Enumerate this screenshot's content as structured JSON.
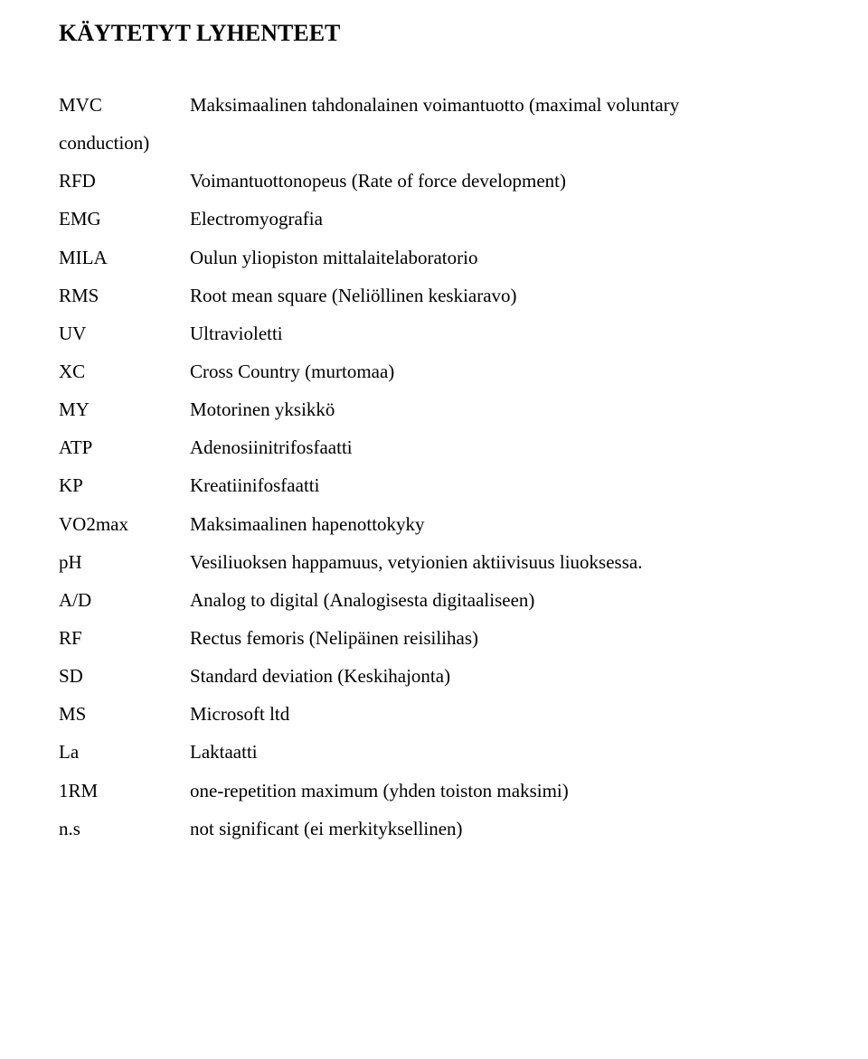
{
  "title": "KÄYTETYT LYHENTEET",
  "rows": [
    {
      "abbr": "MVC",
      "def": "Maksimaalinen tahdonalainen voimantuotto (maximal voluntary"
    },
    {
      "abbr": "conduction)",
      "def": ""
    },
    {
      "abbr": "RFD",
      "def": "Voimantuottonopeus (Rate of force development)"
    },
    {
      "abbr": "EMG",
      "def": "Electromyografia"
    },
    {
      "abbr": "MILA",
      "def": "Oulun yliopiston mittalaitelaboratorio"
    },
    {
      "abbr": "RMS",
      "def": "Root mean square (Neliöllinen keskiaravo)"
    },
    {
      "abbr": "UV",
      "def": "Ultravioletti"
    },
    {
      "abbr": "XC",
      "def": "Cross Country (murtomaa)"
    },
    {
      "abbr": "MY",
      "def": "Motorinen yksikkö"
    },
    {
      "abbr": "ATP",
      "def": "Adenosiinitrifosfaatti"
    },
    {
      "abbr": "KP",
      "def": "Kreatiinifosfaatti"
    },
    {
      "abbr": "VO2max",
      "def": "Maksimaalinen hapenottokyky"
    },
    {
      "abbr": "pH",
      "def": "Vesiliuoksen happamuus, vetyionien aktiivisuus liuoksessa."
    },
    {
      "abbr": "A/D",
      "def": "Analog to digital (Analogisesta digitaaliseen)"
    },
    {
      "abbr": "RF",
      "def": "Rectus femoris (Nelipäinen reisilihas)"
    },
    {
      "abbr": "SD",
      "def": "Standard deviation (Keskihajonta)"
    },
    {
      "abbr": "MS",
      "def": "Microsoft ltd"
    },
    {
      "abbr": "La",
      "def": "Laktaatti"
    },
    {
      "abbr": "1RM",
      "def": "one-repetition maximum (yhden toiston maksimi)"
    },
    {
      "abbr": "n.s",
      "def": "not significant (ei merkityksellinen)"
    }
  ]
}
